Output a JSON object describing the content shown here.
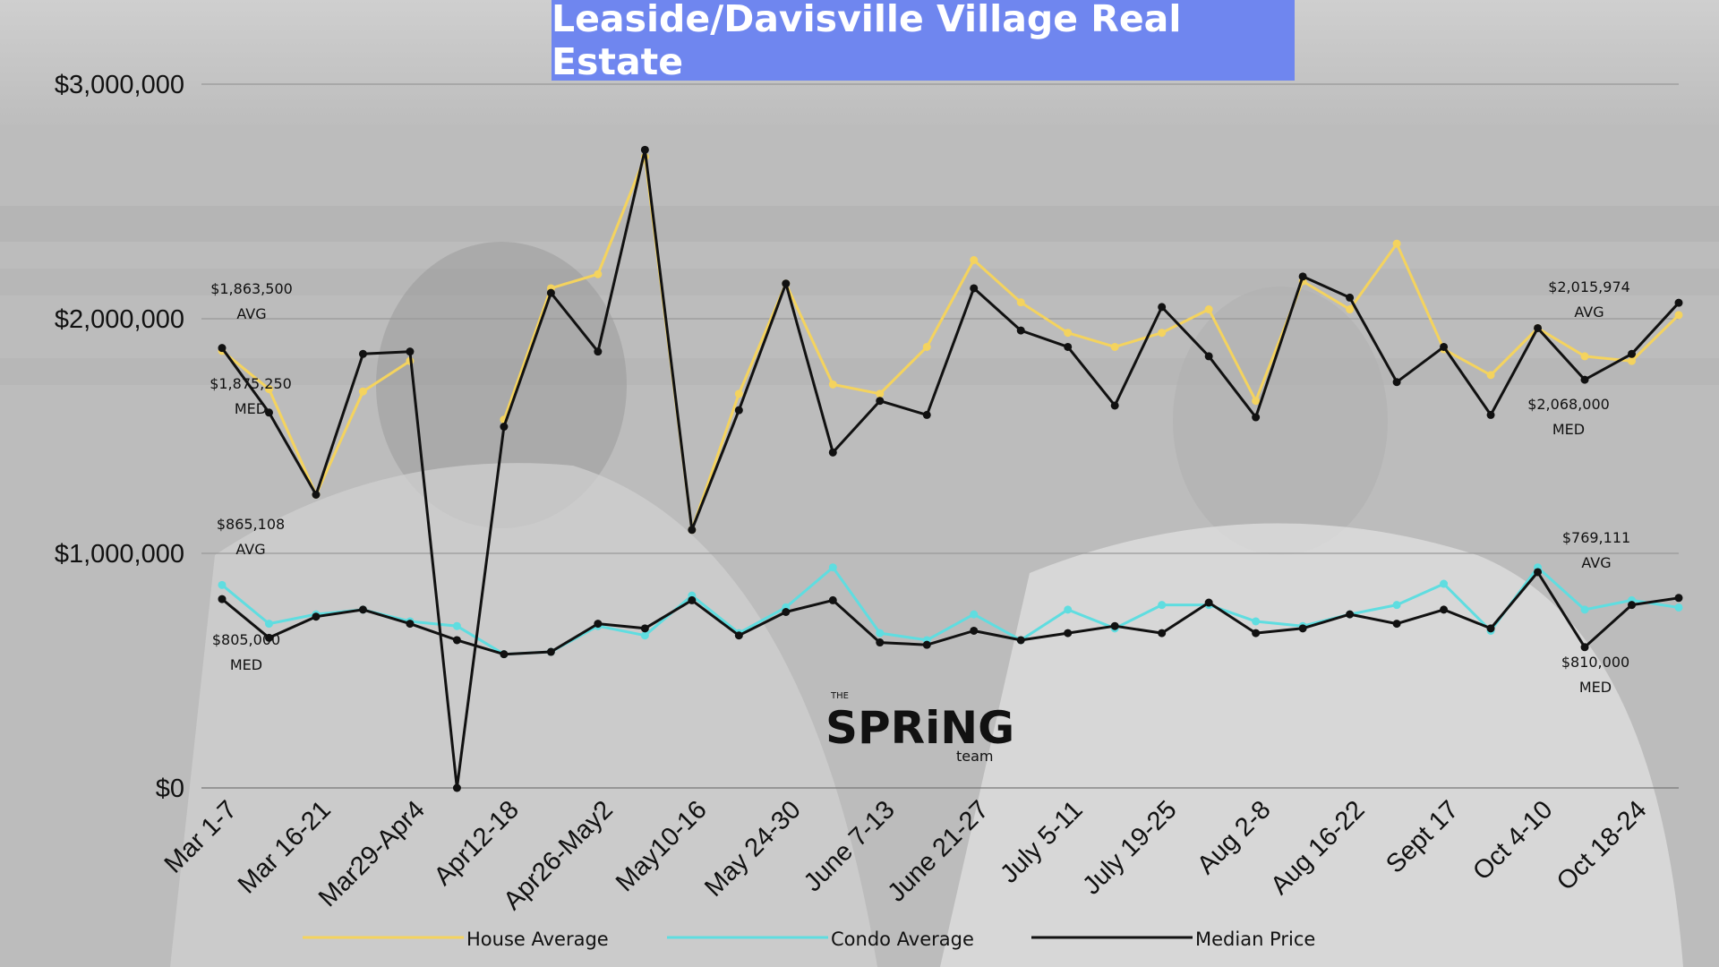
{
  "title": "Leaside/Davisville Village Real Estate",
  "colors": {
    "house": "#f4d35e",
    "condo": "#5fdde0",
    "median": "#111111",
    "title_bg": "#6f86ef"
  },
  "logo": {
    "small": "THE",
    "big": "SPRiNG",
    "sub": "team"
  },
  "chart_data": {
    "type": "line",
    "ylim": [
      0,
      3000000
    ],
    "y_ticks": [
      {
        "value": 0,
        "label": "$0"
      },
      {
        "value": 1000000,
        "label": "$1,000,000"
      },
      {
        "value": 2000000,
        "label": "$2,000,000"
      },
      {
        "value": 3000000,
        "label": "$3,000,000"
      }
    ],
    "points": 32,
    "x_labels": [
      {
        "index": 0,
        "label": "Mar 1-7"
      },
      {
        "index": 2,
        "label": "Mar 16-21"
      },
      {
        "index": 4,
        "label": "Mar29-Apr4"
      },
      {
        "index": 6,
        "label": "Apr12-18"
      },
      {
        "index": 8,
        "label": "Apr26-May2"
      },
      {
        "index": 10,
        "label": "May10-16"
      },
      {
        "index": 12,
        "label": "May 24-30"
      },
      {
        "index": 14,
        "label": "June 7-13"
      },
      {
        "index": 16,
        "label": "June 21-27"
      },
      {
        "index": 18,
        "label": "July 5-11"
      },
      {
        "index": 20,
        "label": "July 19-25"
      },
      {
        "index": 22,
        "label": "Aug 2-8"
      },
      {
        "index": 24,
        "label": "Aug 16-22"
      },
      {
        "index": 26,
        "label": "Sept 17"
      },
      {
        "index": 28,
        "label": "Oct 4-10"
      },
      {
        "index": 30,
        "label": "Oct 18-24"
      }
    ],
    "series": [
      {
        "name": "House Average",
        "color": "#f4d35e",
        "values": [
          1863500,
          1700000,
          1250000,
          1690000,
          1820000,
          null,
          1570000,
          2130000,
          2190000,
          2690000,
          1100000,
          1680000,
          2150000,
          1720000,
          1680000,
          1880000,
          2250000,
          2070000,
          1940000,
          1880000,
          1940000,
          2040000,
          1650000,
          2160000,
          2040000,
          2320000,
          1870000,
          1760000,
          1960000,
          1840000,
          1820000,
          2015974
        ]
      },
      {
        "name": "Condo Average",
        "color": "#5fdde0",
        "values": [
          865108,
          700000,
          740000,
          760000,
          710000,
          690000,
          570000,
          580000,
          690000,
          650000,
          820000,
          660000,
          770000,
          940000,
          660000,
          630000,
          740000,
          630000,
          760000,
          680000,
          780000,
          780000,
          710000,
          690000,
          740000,
          780000,
          870000,
          670000,
          940000,
          760000,
          800000,
          769111
        ]
      },
      {
        "name": "Median Price",
        "color": "#111111",
        "values": [
          805000,
          640000,
          730000,
          760000,
          700000,
          630000,
          570000,
          580000,
          700000,
          680000,
          800000,
          650000,
          750000,
          800000,
          620000,
          610000,
          670000,
          630000,
          660000,
          690000,
          660000,
          790000,
          660000,
          680000,
          740000,
          700000,
          760000,
          680000,
          920000,
          600000,
          780000,
          810000
        ]
      }
    ],
    "median_line_values": [
      1875250,
      1600000,
      1250000,
      1850000,
      1860000,
      0,
      1540000,
      2110000,
      1860000,
      2720000,
      1100000,
      1610000,
      2150000,
      1430000,
      1650000,
      1590000,
      2130000,
      1950000,
      1880000,
      1630000,
      2050000,
      1840000,
      1580000,
      2180000,
      2090000,
      1730000,
      1880000,
      1590000,
      1960000,
      1740000,
      1850000,
      2068000
    ],
    "annotations": {
      "house_first_avg": {
        "value": "$1,863,500",
        "tag": "AVG"
      },
      "house_first_med": {
        "value": "$1,875,250",
        "tag": "MED"
      },
      "condo_first_avg": {
        "value": "$865,108",
        "tag": "AVG"
      },
      "condo_first_med": {
        "value": "$805,000",
        "tag": "MED"
      },
      "house_last_avg": {
        "value": "$2,015,974",
        "tag": "AVG"
      },
      "house_last_med": {
        "value": "$2,068,000",
        "tag": "MED"
      },
      "condo_last_avg": {
        "value": "$769,111",
        "tag": "AVG"
      },
      "condo_last_med": {
        "value": "$810,000",
        "tag": "MED"
      }
    },
    "legend": [
      {
        "name": "House Average",
        "color": "#f4d35e"
      },
      {
        "name": "Condo Average",
        "color": "#5fdde0"
      },
      {
        "name": "Median Price",
        "color": "#111111"
      }
    ],
    "legend_position": "bottom",
    "grid": true
  }
}
